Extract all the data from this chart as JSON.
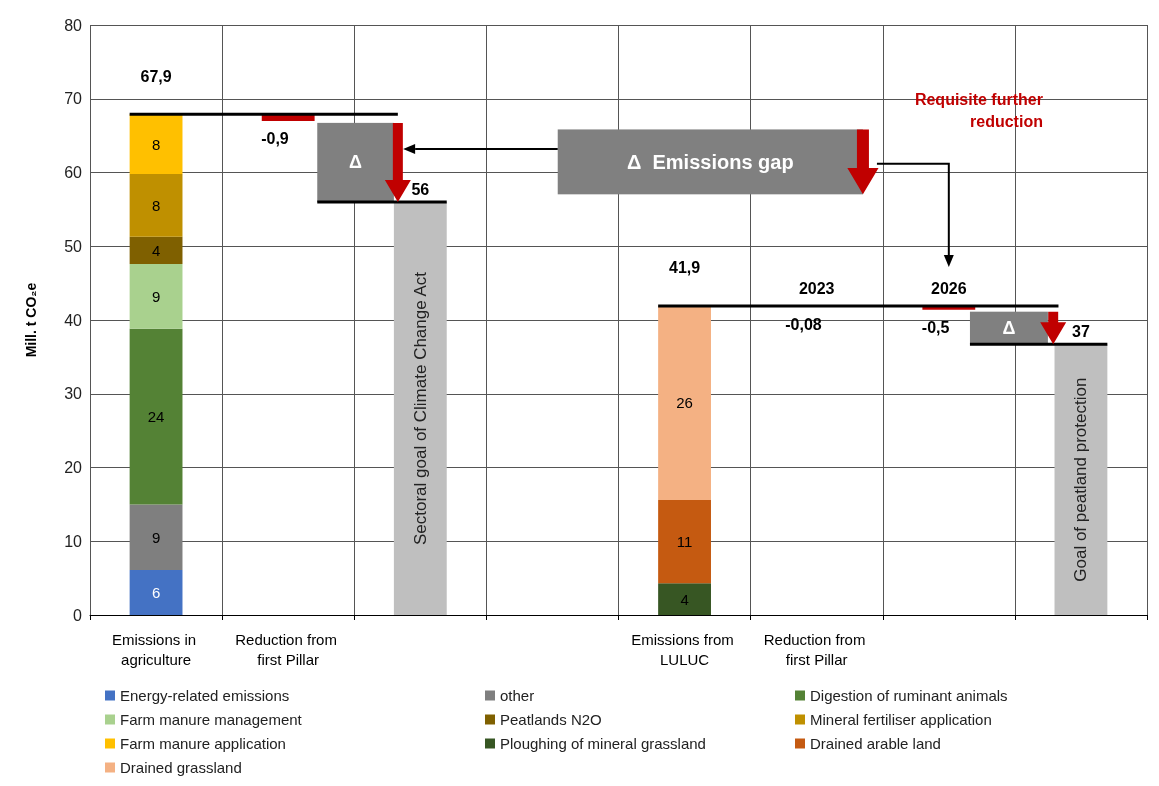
{
  "chart_data": {
    "type": "bar",
    "stacked": true,
    "ylabel": "Mill. t CO₂e",
    "categories": [
      "Emissions in agriculture",
      "Reduction from first Pillar",
      null,
      null,
      "Emissions from LULUC",
      "Reduction from first Pillar",
      null,
      null
    ],
    "series": [
      {
        "name": "Energy-related emissions",
        "color": "#4472c4",
        "values": [
          6.1,
          null,
          null,
          null,
          null,
          null,
          null,
          null
        ],
        "value_labels": [
          "6",
          null,
          null,
          null,
          null,
          null,
          null,
          null
        ]
      },
      {
        "name": "other",
        "color": "#7f7f7f",
        "values": [
          8.9,
          null,
          null,
          null,
          null,
          null,
          null,
          null
        ],
        "value_labels": [
          "9",
          null,
          null,
          null,
          null,
          null,
          null,
          null
        ]
      },
      {
        "name": "Digestion of ruminant animals",
        "color": "#548235",
        "values": [
          23.8,
          null,
          null,
          null,
          null,
          null,
          null,
          null
        ],
        "value_labels": [
          "24",
          null,
          null,
          null,
          null,
          null,
          null,
          null
        ]
      },
      {
        "name": "Farm manure management",
        "color": "#a9d18e",
        "values": [
          8.8,
          null,
          null,
          null,
          null,
          null,
          null,
          null
        ],
        "value_labels": [
          "9",
          null,
          null,
          null,
          null,
          null,
          null,
          null
        ]
      },
      {
        "name": "Peatlands N2O",
        "color": "#7f6000",
        "values": [
          3.7,
          null,
          null,
          null,
          null,
          null,
          null,
          null
        ],
        "value_labels": [
          "4",
          null,
          null,
          null,
          null,
          null,
          null,
          null
        ]
      },
      {
        "name": "Mineral fertiliser application",
        "color": "#bf9000",
        "values": [
          8.5,
          null,
          null,
          null,
          null,
          null,
          null,
          null
        ],
        "value_labels": [
          "8",
          null,
          null,
          null,
          null,
          null,
          null,
          null
        ]
      },
      {
        "name": "Farm manure application",
        "color": "#ffc000",
        "values": [
          8.1,
          null,
          null,
          null,
          null,
          null,
          null,
          null
        ],
        "value_labels": [
          "8",
          null,
          null,
          null,
          null,
          null,
          null,
          null
        ]
      },
      {
        "name": "Ploughing of mineral grassland",
        "color": "#375623",
        "values": [
          null,
          null,
          null,
          null,
          4.3,
          null,
          null,
          null
        ],
        "value_labels": [
          null,
          null,
          null,
          null,
          "4",
          null,
          null,
          null
        ]
      },
      {
        "name": "Drained arable land",
        "color": "#c55a11",
        "values": [
          null,
          null,
          null,
          null,
          11.3,
          null,
          null,
          null
        ],
        "value_labels": [
          null,
          null,
          null,
          null,
          "11",
          null,
          null,
          null
        ]
      },
      {
        "name": "Drained grassland",
        "color": "#f4b183",
        "values": [
          null,
          null,
          null,
          null,
          26.3,
          null,
          null,
          null
        ],
        "value_labels": [
          null,
          null,
          null,
          null,
          "26",
          null,
          null,
          null
        ]
      },
      {
        "color": "#c00000",
        "base": [
          null,
          67.9,
          null,
          null,
          null,
          41.9,
          41.9,
          null
        ],
        "values": [
          null,
          -0.9,
          null,
          null,
          null,
          -0.08,
          -0.5,
          null
        ],
        "value_labels": [
          null,
          "-0,9",
          null,
          null,
          null,
          "-0,08",
          "-0,5",
          null
        ]
      },
      {
        "color": "#bfbfbf",
        "values": [
          null,
          null,
          56,
          null,
          null,
          null,
          null,
          36.7
        ],
        "value_labels": [
          null,
          null,
          "56",
          null,
          null,
          null,
          null,
          "37"
        ]
      }
    ],
    "totals": [
      "67,9",
      null,
      null,
      null,
      "41,9",
      null,
      null,
      null
    ],
    "annotations": [
      "Δ",
      "Δ  Emissions gap",
      "Requisite further reduction",
      {
        "text": "2023",
        "y": 41.9
      },
      {
        "text": "2026",
        "y": 41.9
      },
      "Δ",
      "Sectoral goal of Climate Change Act",
      "Goal of peatland protection"
    ],
    "ref_lines": [
      {
        "axis": "y",
        "value": 67.9
      },
      {
        "axis": "y",
        "value": 41.9
      }
    ],
    "ylim": [
      0,
      80
    ],
    "yticks": [
      0,
      10,
      20,
      30,
      40,
      50,
      60,
      70,
      80
    ],
    "grid": true,
    "legend": "bottom"
  }
}
